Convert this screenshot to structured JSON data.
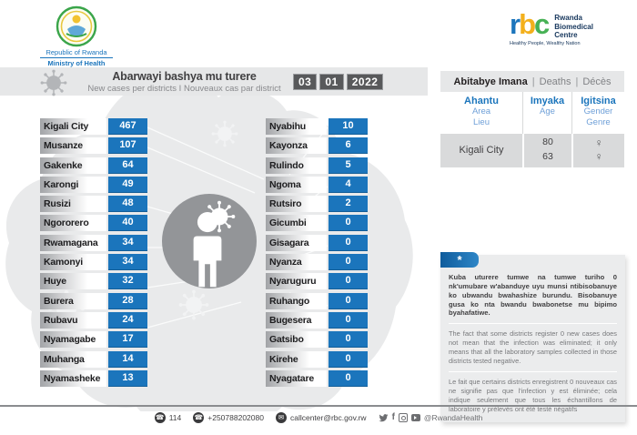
{
  "logos": {
    "moh": {
      "line1": "Republic of Rwanda",
      "line2": "Ministry of Health"
    },
    "rbc": {
      "letters": [
        "r",
        "b",
        "c"
      ],
      "name_lines": [
        "Rwanda",
        "Biomedical",
        "Centre"
      ],
      "tagline": "Healthy People, Wealthy Nation"
    }
  },
  "header": {
    "title_rw": "Abarwayi bashya mu turere",
    "subtitle": "New cases per districts  I  Nouveaux cas par district",
    "date": {
      "day": "03",
      "month": "01",
      "year": "2022"
    }
  },
  "districts": {
    "left": [
      {
        "name": "Kigali City",
        "value": "467"
      },
      {
        "name": "Musanze",
        "value": "107"
      },
      {
        "name": "Gakenke",
        "value": "64"
      },
      {
        "name": "Karongi",
        "value": "49"
      },
      {
        "name": "Rusizi",
        "value": "48"
      },
      {
        "name": "Ngororero",
        "value": "40"
      },
      {
        "name": "Rwamagana",
        "value": "34"
      },
      {
        "name": "Kamonyi",
        "value": "34"
      },
      {
        "name": "Huye",
        "value": "32"
      },
      {
        "name": "Burera",
        "value": "28"
      },
      {
        "name": "Rubavu",
        "value": "24"
      },
      {
        "name": "Nyamagabe",
        "value": "17"
      },
      {
        "name": "Muhanga",
        "value": "14"
      },
      {
        "name": "Nyamasheke",
        "value": "13"
      }
    ],
    "right": [
      {
        "name": "Nyabihu",
        "value": "10"
      },
      {
        "name": "Kayonza",
        "value": "6"
      },
      {
        "name": "Rulindo",
        "value": "5"
      },
      {
        "name": "Ngoma",
        "value": "4"
      },
      {
        "name": "Rutsiro",
        "value": "2"
      },
      {
        "name": "Gicumbi",
        "value": "0"
      },
      {
        "name": "Gisagara",
        "value": "0"
      },
      {
        "name": "Nyanza",
        "value": "0"
      },
      {
        "name": "Nyaruguru",
        "value": "0"
      },
      {
        "name": "Ruhango",
        "value": "0"
      },
      {
        "name": "Bugesera",
        "value": "0"
      },
      {
        "name": "Gatsibo",
        "value": "0"
      },
      {
        "name": "Kirehe",
        "value": "0"
      },
      {
        "name": "Nyagatare",
        "value": "0"
      }
    ]
  },
  "deaths": {
    "title_rw": "Abitabye Imana",
    "title_en": "Deaths",
    "title_fr": "Décès",
    "separator": "|",
    "columns": [
      {
        "rw": "Ahantu",
        "en": "Area",
        "fr": "Lieu"
      },
      {
        "rw": "Imyaka",
        "en": "Age",
        "fr": ""
      },
      {
        "rw": "Igitsina",
        "en": "Gender",
        "fr": "Genre"
      }
    ],
    "rows": [
      {
        "area": "Kigali City",
        "ages": [
          "80",
          "63"
        ],
        "genders": [
          "♀",
          "♀"
        ]
      }
    ]
  },
  "note": {
    "marker": "*",
    "rw": "Kuba uturere tumwe na tumwe turiho 0 nk'umubare w'abanduye uyu munsi ntibisobanuye ko ubwandu bwahashize burundu. Bisobanuye gusa ko nta bwandu bwabonetse mu bipimo byahafatiwe.",
    "en": "The fact that some districts register 0 new cases does not mean that the infection was eliminated; it only means that all the laboratory samples collected in those districts tested negative.",
    "fr": "Le fait que certains districts enregistrent 0 nouveaux cas ne signifie pas que l'infection y est éliminée; cela indique seulement que tous les échantillons de laboratoire y prélevés ont été testé négatifs"
  },
  "footer": {
    "phone_short": "114",
    "phone": "+250788202080",
    "email": "callcenter@rbc.gov.rw",
    "social_handle": "@RwandaHealth"
  },
  "colors": {
    "accent_blue": "#1b75bc",
    "band_gray": "#e6e7e8",
    "date_box": "#58595b",
    "map_gray": "#e9eaeb",
    "circle_gray": "#939598",
    "row_gray": "#d9dadb",
    "note_bg": "#ebeced"
  }
}
